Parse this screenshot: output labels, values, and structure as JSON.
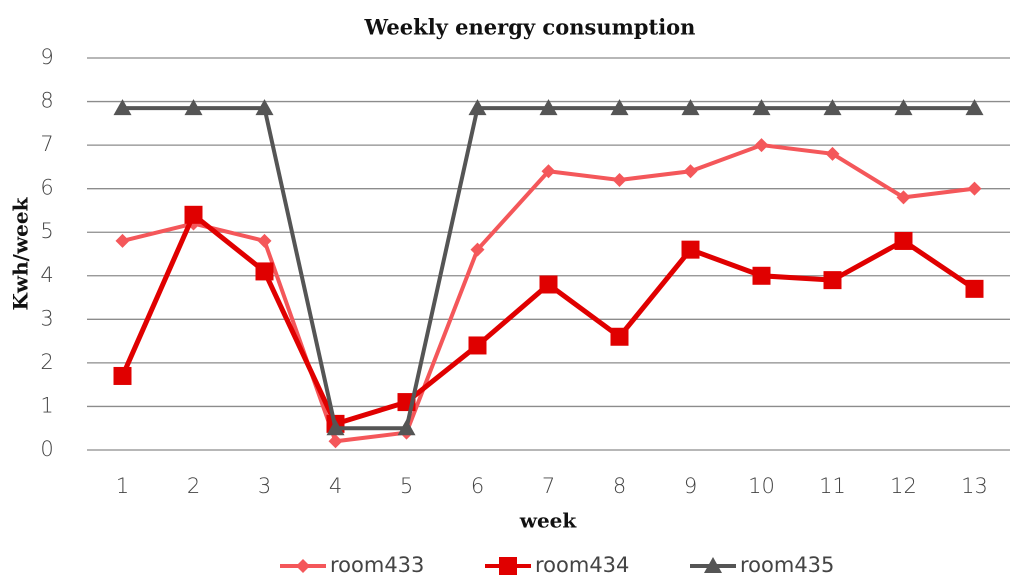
{
  "chart_data": {
    "type": "line",
    "title": "Weekly energy consumption",
    "x_label": "week",
    "y_label": "Kwh/week",
    "categories": [
      "1",
      "2",
      "3",
      "4",
      "5",
      "6",
      "7",
      "8",
      "9",
      "10",
      "11",
      "12",
      "13"
    ],
    "series": [
      {
        "name": "room433",
        "color": "#f4575a",
        "marker": "diamond",
        "values": [
          4.8,
          5.2,
          4.8,
          0.2,
          0.4,
          4.6,
          6.4,
          6.2,
          6.4,
          7.0,
          6.8,
          5.8,
          6.0
        ]
      },
      {
        "name": "room434",
        "color": "#e00000",
        "marker": "square",
        "values": [
          1.7,
          5.4,
          4.1,
          0.6,
          1.1,
          2.4,
          3.8,
          2.6,
          4.6,
          4.0,
          3.9,
          4.8,
          3.7
        ]
      },
      {
        "name": "room435",
        "color": "#555555",
        "marker": "triangle",
        "values": [
          7.85,
          7.85,
          7.85,
          0.5,
          0.5,
          7.85,
          7.85,
          7.85,
          7.85,
          7.85,
          7.85,
          7.85,
          7.85
        ]
      }
    ],
    "ylim": [
      0,
      9
    ],
    "yticks": [
      0,
      1,
      2,
      3,
      4,
      5,
      6,
      7,
      8,
      9
    ],
    "grid": true,
    "legend": "bottom"
  }
}
